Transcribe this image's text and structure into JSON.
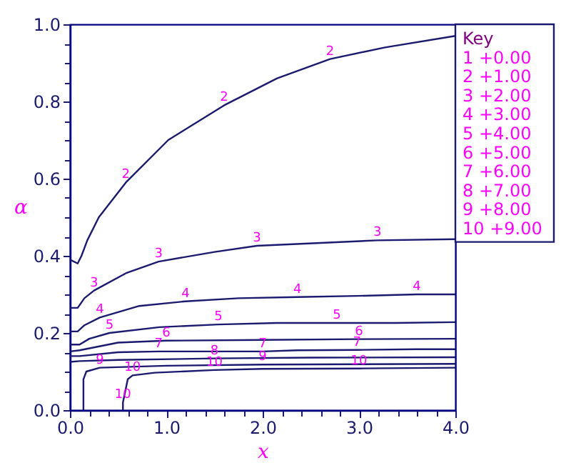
{
  "chart_data": {
    "type": "line",
    "xlabel": "x",
    "ylabel": "α",
    "xlim": [
      0,
      4
    ],
    "ylim": [
      0,
      1
    ],
    "xticks": [
      {
        "value": 0,
        "label": "0.0"
      },
      {
        "value": 0.2,
        "label": null
      },
      {
        "value": 0.4,
        "label": null
      },
      {
        "value": 0.6,
        "label": null
      },
      {
        "value": 0.8,
        "label": null
      },
      {
        "value": 1,
        "label": "1.0"
      },
      {
        "value": 1.2,
        "label": null
      },
      {
        "value": 1.4,
        "label": null
      },
      {
        "value": 1.6,
        "label": null
      },
      {
        "value": 1.8,
        "label": null
      },
      {
        "value": 2,
        "label": "2.0"
      },
      {
        "value": 2.2,
        "label": null
      },
      {
        "value": 2.4,
        "label": null
      },
      {
        "value": 2.6,
        "label": null
      },
      {
        "value": 2.8,
        "label": null
      },
      {
        "value": 3,
        "label": "3.0"
      },
      {
        "value": 3.2,
        "label": null
      },
      {
        "value": 3.4,
        "label": null
      },
      {
        "value": 3.6,
        "label": null
      },
      {
        "value": 3.8,
        "label": null
      },
      {
        "value": 4,
        "label": "4.0"
      }
    ],
    "yticks": [
      {
        "value": 0,
        "label": "0.0"
      },
      {
        "value": 0.05,
        "label": null
      },
      {
        "value": 0.1,
        "label": null
      },
      {
        "value": 0.15,
        "label": null
      },
      {
        "value": 0.2,
        "label": "0.2"
      },
      {
        "value": 0.25,
        "label": null
      },
      {
        "value": 0.3,
        "label": null
      },
      {
        "value": 0.35,
        "label": null
      },
      {
        "value": 0.4,
        "label": "0.4"
      },
      {
        "value": 0.45,
        "label": null
      },
      {
        "value": 0.5,
        "label": null
      },
      {
        "value": 0.55,
        "label": null
      },
      {
        "value": 0.6,
        "label": "0.6"
      },
      {
        "value": 0.65,
        "label": null
      },
      {
        "value": 0.7,
        "label": null
      },
      {
        "value": 0.75,
        "label": null
      },
      {
        "value": 0.8,
        "label": "0.8"
      },
      {
        "value": 0.85,
        "label": null
      },
      {
        "value": 0.9,
        "label": null
      },
      {
        "value": 0.95,
        "label": null
      },
      {
        "value": 1,
        "label": "1.0"
      }
    ],
    "grid": false,
    "legend": "top right",
    "marker": "none",
    "line_style": "solid",
    "annotations": [
      "Key",
      "1  +0.00",
      "2  +1.00",
      "3  +2.00",
      "4  +3.00",
      "5  +4.00",
      "6  +5.00",
      "7  +6.00",
      "8  +7.00",
      "9  +8.00",
      "10  +9.00"
    ],
    "series": [
      {
        "name": "2",
        "color": "#1a1a70",
        "x": [
          0,
          0.08,
          0.12,
          0.18,
          0.3,
          0.58,
          1.02,
          1.6,
          2.15,
          2.7,
          3.27,
          4
        ],
        "values": [
          0.39,
          0.38,
          0.4,
          0.44,
          0.5,
          0.59,
          0.7,
          0.79,
          0.86,
          0.91,
          0.94,
          0.97
        ]
      },
      {
        "name": "3",
        "color": "#1a1a70",
        "x": [
          0,
          0.08,
          0.15,
          0.25,
          0.59,
          0.92,
          1.5,
          1.94,
          2.56,
          3.19,
          4
        ],
        "values": [
          0.265,
          0.265,
          0.29,
          0.31,
          0.356,
          0.385,
          0.41,
          0.426,
          0.433,
          0.44,
          0.443
        ]
      },
      {
        "name": "4",
        "color": "#1a1a70",
        "x": [
          0,
          0.08,
          0.15,
          0.31,
          0.72,
          1.2,
          1.75,
          2.36,
          2.98,
          3.6,
          4
        ],
        "values": [
          0.204,
          0.204,
          0.22,
          0.24,
          0.27,
          0.282,
          0.29,
          0.293,
          0.296,
          0.3,
          0.3
        ]
      },
      {
        "name": "5",
        "color": "#1a1a70",
        "x": [
          0,
          0.1,
          0.2,
          0.41,
          0.93,
          1.54,
          2.15,
          2.77,
          3.38,
          4
        ],
        "values": [
          0.17,
          0.17,
          0.185,
          0.2,
          0.215,
          0.222,
          0.226,
          0.226,
          0.226,
          0.228
        ]
      },
      {
        "name": "6",
        "color": "#1a1a70",
        "x": [
          0,
          0.1,
          0.5,
          1,
          2,
          3,
          4
        ],
        "values": [
          0.152,
          0.155,
          0.175,
          0.18,
          0.182,
          0.184,
          0.185
        ]
      },
      {
        "name": "7",
        "color": "#1a1a70",
        "x": [
          0,
          0.1,
          0.5,
          0.92,
          1.45,
          2,
          2.36,
          2.98,
          3.6,
          4
        ],
        "values": [
          0.14,
          0.14,
          0.15,
          0.152,
          0.152,
          0.152,
          0.155,
          0.156,
          0.158,
          0.158
        ]
      },
      {
        "name": "8",
        "color": "#1a1a70",
        "x": [
          0,
          0.1,
          0.5,
          1.5,
          2.5,
          4
        ],
        "values": [
          0.125,
          0.127,
          0.13,
          0.134,
          0.136,
          0.137
        ]
      },
      {
        "name": "9",
        "color": "#1a1a70",
        "x": [
          0.14,
          0.14,
          0.17,
          0.31,
          1,
          2,
          3,
          4
        ],
        "values": [
          0,
          0.08,
          0.1,
          0.11,
          0.115,
          0.118,
          0.119,
          0.12
        ]
      },
      {
        "name": "10",
        "color": "#1a1a70",
        "x": [
          0.55,
          0.55,
          0.6,
          0.65,
          0.88,
          1.5,
          2,
          3,
          4
        ],
        "values": [
          0,
          0.02,
          0.08,
          0.09,
          0.097,
          0.104,
          0.107,
          0.108,
          0.11
        ]
      }
    ]
  }
}
